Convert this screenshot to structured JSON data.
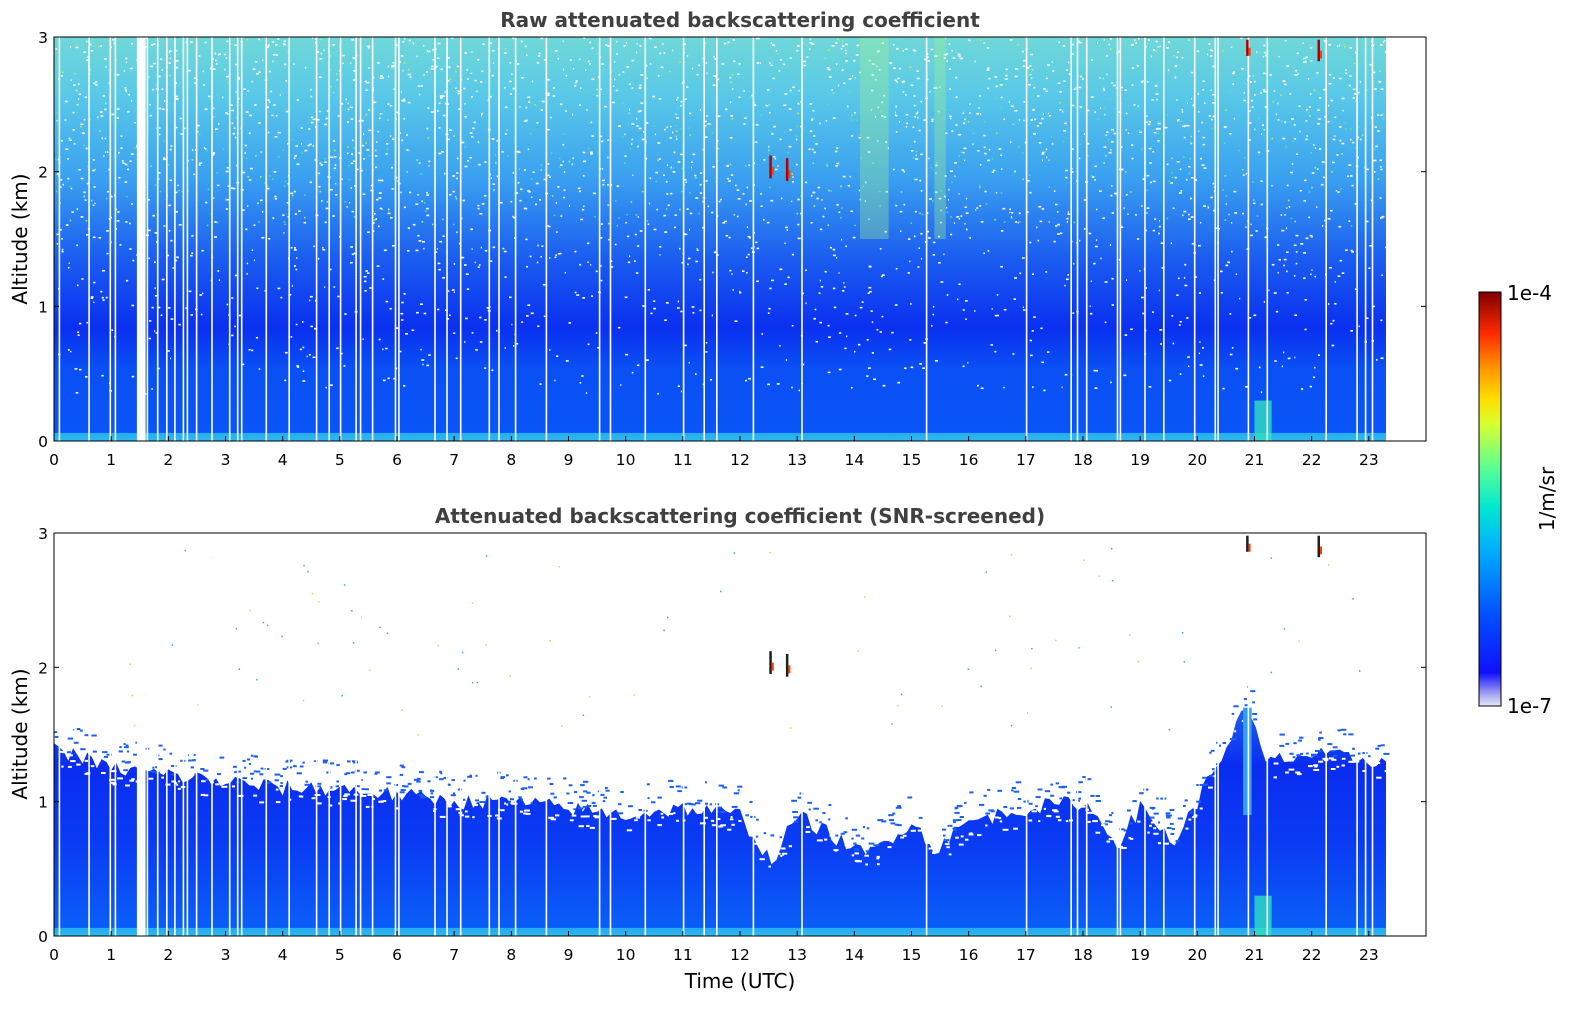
{
  "chart_data": [
    {
      "type": "heatmap",
      "title": "Raw attenuated backscattering coefficient",
      "xlabel": "",
      "ylabel": "Altitude (km)",
      "xlim": [
        0,
        24
      ],
      "ylim": [
        0,
        3
      ],
      "x_ticks": [
        "0",
        "1",
        "2",
        "3",
        "4",
        "5",
        "6",
        "7",
        "8",
        "9",
        "10",
        "11",
        "12",
        "13",
        "14",
        "15",
        "16",
        "17",
        "18",
        "19",
        "20",
        "21",
        "22",
        "23"
      ],
      "y_ticks": [
        "0",
        "1",
        "2",
        "3"
      ],
      "data_time_range": [
        0,
        23.3
      ],
      "gap_times": [
        0.08,
        0.6,
        0.97,
        1.06,
        1.45,
        1.5,
        1.55,
        1.62,
        1.8,
        1.96,
        2.1,
        2.25,
        2.32,
        2.48,
        2.75,
        3.06,
        3.2,
        3.27,
        3.7,
        4.1,
        4.58,
        4.8,
        5.0,
        5.27,
        5.35,
        5.56,
        5.96,
        6.02,
        6.65,
        6.86,
        7.1,
        7.6,
        7.77,
        8.06,
        8.6,
        9.53,
        9.72,
        10.33,
        11.0,
        11.36,
        11.58,
        12.22,
        13.07,
        15.25,
        17.0,
        17.78,
        17.89,
        18.05,
        18.59,
        18.64,
        19.07,
        19.4,
        19.94,
        20.3,
        20.35,
        20.88,
        21.21,
        22.24,
        22.78,
        22.93,
        23.05
      ],
      "features": [
        {
          "x": 12.53,
          "y_range": [
            1.95,
            2.12
          ],
          "value": "1e-4"
        },
        {
          "x": 12.82,
          "y_range": [
            1.93,
            2.1
          ],
          "value": "1e-4"
        },
        {
          "x": 20.87,
          "y_range": [
            2.86,
            2.98
          ],
          "value": "1e-4"
        },
        {
          "x": 22.12,
          "y_range": [
            2.82,
            2.98
          ],
          "value": "1e-4"
        }
      ]
    },
    {
      "type": "heatmap",
      "title": "Attenuated backscattering coefficient (SNR-screened)",
      "xlabel": "Time (UTC)",
      "ylabel": "Altitude (km)",
      "xlim": [
        0,
        24
      ],
      "ylim": [
        0,
        3
      ],
      "x_ticks": [
        "0",
        "1",
        "2",
        "3",
        "4",
        "5",
        "6",
        "7",
        "8",
        "9",
        "10",
        "11",
        "12",
        "13",
        "14",
        "15",
        "16",
        "17",
        "18",
        "19",
        "20",
        "21",
        "22",
        "23"
      ],
      "y_ticks": [
        "0",
        "1",
        "2",
        "3"
      ],
      "data_time_range": [
        0,
        23.3
      ],
      "boundary_layer_top_km": [
        {
          "t": 0,
          "h": 1.4
        },
        {
          "t": 1,
          "h": 1.25
        },
        {
          "t": 2,
          "h": 1.2
        },
        {
          "t": 3,
          "h": 1.15
        },
        {
          "t": 4,
          "h": 1.1
        },
        {
          "t": 5,
          "h": 1.1
        },
        {
          "t": 6,
          "h": 1.05
        },
        {
          "t": 7,
          "h": 1.0
        },
        {
          "t": 8,
          "h": 1.0
        },
        {
          "t": 9,
          "h": 0.95
        },
        {
          "t": 10,
          "h": 0.9
        },
        {
          "t": 11,
          "h": 0.95
        },
        {
          "t": 12,
          "h": 0.9
        },
        {
          "t": 12.55,
          "h": 0.55
        },
        {
          "t": 13,
          "h": 0.9
        },
        {
          "t": 14.2,
          "h": 0.6
        },
        {
          "t": 15,
          "h": 0.85
        },
        {
          "t": 15.4,
          "h": 0.65
        },
        {
          "t": 16,
          "h": 0.85
        },
        {
          "t": 17,
          "h": 0.95
        },
        {
          "t": 18,
          "h": 1.0
        },
        {
          "t": 18.6,
          "h": 0.7
        },
        {
          "t": 19,
          "h": 0.95
        },
        {
          "t": 19.6,
          "h": 0.7
        },
        {
          "t": 20,
          "h": 1.0
        },
        {
          "t": 20.85,
          "h": 1.7
        },
        {
          "t": 21.2,
          "h": 1.3
        },
        {
          "t": 22,
          "h": 1.35
        },
        {
          "t": 23.3,
          "h": 1.3
        }
      ],
      "features": [
        {
          "x": 12.53,
          "y_range": [
            1.95,
            2.12
          ],
          "value": "1e-4"
        },
        {
          "x": 12.82,
          "y_range": [
            1.93,
            2.1
          ],
          "value": "1e-4"
        },
        {
          "x": 20.87,
          "y_range": [
            2.86,
            2.98
          ],
          "value": "1e-4"
        },
        {
          "x": 22.12,
          "y_range": [
            2.82,
            2.98
          ],
          "value": "1e-4"
        }
      ]
    }
  ],
  "colorbar": {
    "label": "1/m/sr",
    "max_label": "1e-4",
    "min_label": "1e-7",
    "scale": "log",
    "colormap": "jet",
    "colors": [
      "#e8e8f8",
      "#0000ff",
      "#0040ff",
      "#00a0ff",
      "#00e0e0",
      "#40ff80",
      "#c0ff40",
      "#ffe000",
      "#ff8000",
      "#ff2000",
      "#a00000",
      "#800000"
    ]
  }
}
